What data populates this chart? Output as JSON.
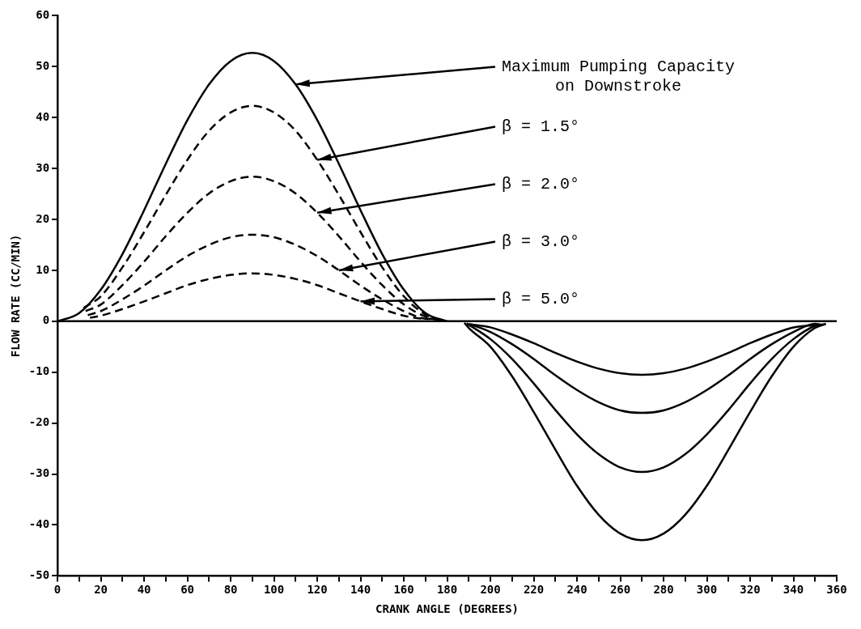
{
  "chart_data": {
    "type": "line",
    "xlabel": "CRANK ANGLE (DEGREES)",
    "ylabel": "FLOW RATE (CC/MIN)",
    "xlim": [
      0,
      360
    ],
    "ylim": [
      -50,
      60
    ],
    "xticks": [
      0,
      {
        "value": 10,
        "label": null
      },
      20,
      {
        "value": 30,
        "label": null
      },
      40,
      {
        "value": 50,
        "label": null
      },
      60,
      {
        "value": 70,
        "label": null
      },
      80,
      {
        "value": 90,
        "label": null
      },
      100,
      {
        "value": 110,
        "label": null
      },
      120,
      {
        "value": 130,
        "label": null
      },
      140,
      {
        "value": 150,
        "label": null
      },
      160,
      {
        "value": 170,
        "label": null
      },
      180,
      {
        "value": 190,
        "label": null
      },
      200,
      {
        "value": 210,
        "label": null
      },
      220,
      {
        "value": 230,
        "label": null
      },
      240,
      {
        "value": 250,
        "label": null
      },
      260,
      {
        "value": 270,
        "label": null
      },
      280,
      {
        "value": 290,
        "label": null
      },
      300,
      {
        "value": 310,
        "label": null
      },
      320,
      {
        "value": 330,
        "label": null
      },
      340,
      {
        "value": 350,
        "label": null
      },
      360
    ],
    "yticks": [
      -50,
      -40,
      -30,
      -20,
      -10,
      0,
      10,
      20,
      30,
      40,
      50,
      60
    ],
    "grid": false,
    "marker": "none",
    "ref_lines": [
      {
        "axis": "y",
        "value": 0,
        "label": null,
        "color": "#000000"
      }
    ],
    "series": [
      {
        "name": "Maximum Pumping Capacity on Downstroke",
        "color": "#000000",
        "line_style": "solid",
        "x": [
          0,
          10,
          20,
          30,
          40,
          50,
          60,
          70,
          80,
          90,
          100,
          110,
          120,
          130,
          140,
          150,
          160,
          170,
          180
        ],
        "values": [
          0,
          1.6,
          6.2,
          13.2,
          21.8,
          30.9,
          39.5,
          46.5,
          51.1,
          52.7,
          51.1,
          46.5,
          39.5,
          30.9,
          21.8,
          13.2,
          6.2,
          1.6,
          0
        ]
      },
      {
        "name": "β = 1.5°",
        "color": "#000000",
        "line_style": "dashed",
        "x": [
          12,
          20,
          30,
          40,
          50,
          60,
          70,
          80,
          90,
          100,
          110,
          120,
          130,
          140,
          150,
          160,
          170,
          177
        ],
        "values": [
          2.6,
          4.9,
          10.6,
          17.5,
          24.8,
          31.7,
          37.4,
          41,
          42.3,
          41,
          37.4,
          31.7,
          24.8,
          17.5,
          10.6,
          4.9,
          1.3,
          0.2
        ]
      },
      {
        "name": "β = 2.0°",
        "color": "#000000",
        "line_style": "dashed",
        "x": [
          13,
          20,
          30,
          40,
          50,
          60,
          70,
          80,
          90,
          100,
          110,
          120,
          130,
          140,
          150,
          160,
          170,
          176
        ],
        "values": [
          2,
          3.3,
          7.1,
          11.7,
          16.7,
          21.3,
          25.1,
          27.5,
          28.4,
          27.5,
          25.1,
          21.3,
          16.7,
          11.7,
          7.1,
          3.3,
          0.9,
          0.3
        ]
      },
      {
        "name": "β = 3.0°",
        "color": "#000000",
        "line_style": "dashed",
        "x": [
          14,
          20,
          30,
          40,
          50,
          60,
          70,
          80,
          90,
          100,
          110,
          120,
          130,
          140,
          150,
          160,
          170,
          175
        ],
        "values": [
          1.2,
          2,
          4.3,
          7,
          10,
          12.8,
          15,
          16.5,
          17,
          16.5,
          15,
          12.8,
          10,
          7,
          4.3,
          2,
          0.5,
          0.4
        ]
      },
      {
        "name": "β = 5.0°",
        "color": "#000000",
        "line_style": "dashed",
        "x": [
          15,
          20,
          30,
          40,
          50,
          60,
          70,
          80,
          90,
          100,
          110,
          120,
          130,
          140,
          150,
          160,
          170,
          174
        ],
        "values": [
          0.7,
          1.1,
          2.4,
          3.9,
          5.5,
          7.1,
          8.3,
          9.1,
          9.4,
          9.1,
          8.3,
          7.1,
          5.5,
          3.9,
          2.4,
          1.1,
          0.5,
          0.5
        ]
      },
      {
        "color": "#000000",
        "line_style": "solid",
        "x": [
          188,
          190,
          200,
          210,
          220,
          230,
          240,
          250,
          260,
          270,
          280,
          290,
          300,
          310,
          320,
          330,
          340,
          350,
          355
        ],
        "values": [
          -0.3,
          -1.3,
          -5,
          -10.8,
          -17.8,
          -25.2,
          -32.3,
          -38,
          -41.7,
          -43,
          -41.7,
          -38,
          -32.3,
          -25.2,
          -17.8,
          -10.8,
          -5,
          -1.3,
          -0.5
        ]
      },
      {
        "color": "#000000",
        "line_style": "solid",
        "x": [
          189,
          200,
          210,
          220,
          230,
          240,
          250,
          260,
          270,
          280,
          290,
          300,
          310,
          320,
          330,
          340,
          350,
          354
        ],
        "values": [
          -0.4,
          -3.5,
          -7.4,
          -12.2,
          -17.4,
          -22.2,
          -26.1,
          -28.7,
          -29.6,
          -28.7,
          -26.1,
          -22.2,
          -17.4,
          -12.2,
          -7.4,
          -3.5,
          -0.9,
          -0.6
        ]
      },
      {
        "color": "#000000",
        "line_style": "solid",
        "x": [
          190,
          200,
          210,
          220,
          230,
          240,
          250,
          260,
          270,
          280,
          290,
          300,
          310,
          320,
          330,
          340,
          350,
          353
        ],
        "values": [
          -0.5,
          -2.1,
          -4.5,
          -7.4,
          -10.6,
          -13.5,
          -15.9,
          -17.5,
          -18,
          -17.5,
          -15.9,
          -13.5,
          -10.6,
          -7.4,
          -4.5,
          -2.1,
          -0.5,
          -0.7
        ]
      },
      {
        "color": "#000000",
        "line_style": "solid",
        "x": [
          191,
          200,
          210,
          220,
          230,
          240,
          250,
          260,
          270,
          280,
          290,
          300,
          310,
          320,
          330,
          340,
          350,
          352
        ],
        "values": [
          -0.6,
          -1.2,
          -2.6,
          -4.3,
          -6.2,
          -7.9,
          -9.3,
          -10.2,
          -10.5,
          -10.2,
          -9.3,
          -7.9,
          -6.2,
          -4.3,
          -2.6,
          -1.2,
          -0.8,
          -0.8
        ]
      }
    ]
  }
}
